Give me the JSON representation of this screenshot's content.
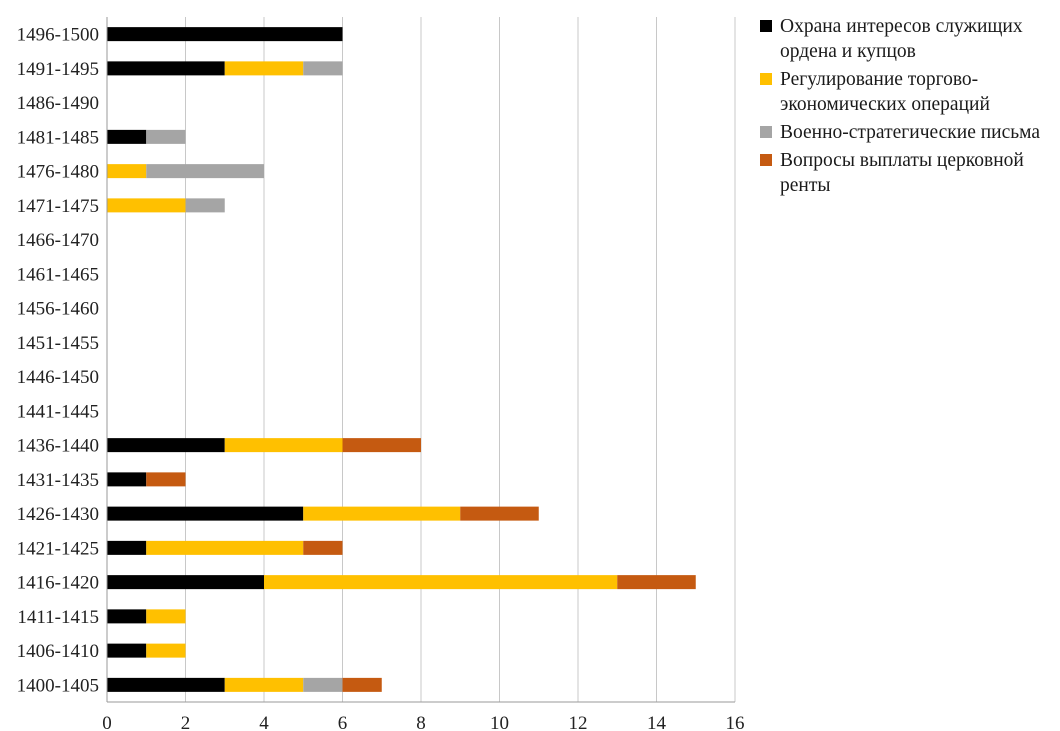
{
  "chart_data": {
    "type": "bar",
    "orientation": "horizontal",
    "stacked": true,
    "categories": [
      "1400-1405",
      "1406-1410",
      "1411-1415",
      "1416-1420",
      "1421-1425",
      "1426-1430",
      "1431-1435",
      "1436-1440",
      "1441-1445",
      "1446-1450",
      "1451-1455",
      "1456-1460",
      "1461-1465",
      "1466-1470",
      "1471-1475",
      "1476-1480",
      "1481-1485",
      "1486-1490",
      "1491-1495",
      "1496-1500"
    ],
    "series": [
      {
        "name": "Охрана интересов служищих ордена и купцов",
        "color": "#000000",
        "values": [
          3,
          1,
          1,
          4,
          1,
          5,
          1,
          3,
          0,
          0,
          0,
          0,
          0,
          0,
          0,
          0,
          1,
          0,
          3,
          6
        ]
      },
      {
        "name": "Регулирование торгово-экономических операций",
        "color": "#FFC000",
        "values": [
          2,
          1,
          1,
          9,
          4,
          4,
          0,
          3,
          0,
          0,
          0,
          0,
          0,
          0,
          2,
          1,
          0,
          0,
          2,
          0
        ]
      },
      {
        "name": "Военно-стратегические письма",
        "color": "#A5A5A5",
        "values": [
          1,
          0,
          0,
          0,
          0,
          0,
          0,
          0,
          0,
          0,
          0,
          0,
          0,
          0,
          1,
          3,
          1,
          0,
          1,
          0
        ]
      },
      {
        "name": "Вопросы выплаты церковной ренты",
        "color": "#C55A11",
        "values": [
          1,
          0,
          0,
          2,
          1,
          2,
          1,
          2,
          0,
          0,
          0,
          0,
          0,
          0,
          0,
          0,
          0,
          0,
          0,
          0
        ]
      }
    ],
    "xlim": [
      0,
      16
    ],
    "xticks": [
      "0",
      "2",
      "4",
      "6",
      "8",
      "10",
      "12",
      "14",
      "16"
    ],
    "grid": "vertical",
    "legend_position": "top-right",
    "title": "",
    "xlabel": "",
    "ylabel": ""
  }
}
